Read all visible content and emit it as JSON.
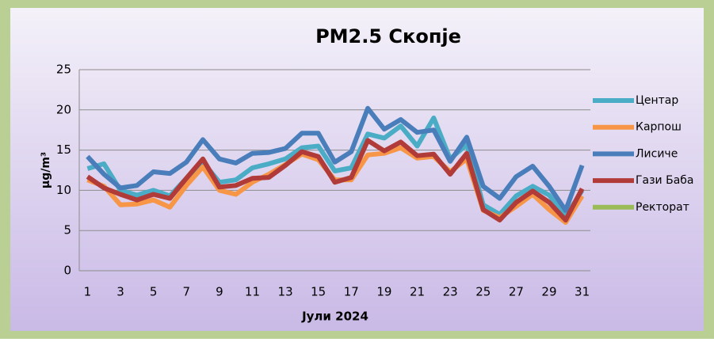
{
  "chart_data": {
    "type": "line",
    "title": "PM2.5 Скопје",
    "x_label": "Јули 2024",
    "y_label": "μg/m³",
    "categories": [
      1,
      null,
      3,
      null,
      5,
      null,
      7,
      null,
      9,
      null,
      11,
      null,
      13,
      null,
      15,
      null,
      17,
      null,
      19,
      null,
      21,
      null,
      23,
      null,
      25,
      null,
      27,
      null,
      29,
      null,
      31
    ],
    "ylim": [
      0,
      25
    ],
    "yticks": [
      0,
      5,
      10,
      15,
      20,
      25
    ],
    "grid": true,
    "legend": "right",
    "series": [
      {
        "name": "Центар",
        "color": "#4bacc6",
        "values": [
          12.7,
          13.3,
          10,
          9.4,
          10,
          9.3,
          11.5,
          13.5,
          11,
          11.3,
          12.8,
          13.3,
          13.9,
          15.3,
          15.5,
          12.4,
          12.8,
          17,
          16.5,
          18,
          15.5,
          19,
          13.9,
          15.7,
          8.2,
          7,
          9.3,
          10.5,
          9.4,
          6.7,
          10
        ]
      },
      {
        "name": "Карпош",
        "color": "#f79646",
        "values": [
          11.3,
          10.5,
          8.2,
          8.3,
          8.8,
          7.9,
          10.6,
          12.9,
          10,
          9.5,
          11,
          12,
          13.2,
          14.5,
          13.8,
          11.3,
          11.3,
          14.4,
          14.6,
          15.3,
          14,
          14.2,
          12.3,
          13.9,
          7.5,
          6.6,
          8,
          9.5,
          7.6,
          6,
          9.3
        ]
      },
      {
        "name": "Лисиче",
        "color": "#4a7ebb",
        "values": [
          14.2,
          12,
          10.3,
          10.6,
          12.3,
          12.1,
          13.5,
          16.3,
          13.9,
          13.4,
          14.6,
          14.7,
          15.2,
          17.1,
          17.1,
          13.5,
          14.8,
          20.2,
          17.6,
          18.8,
          17.2,
          17.5,
          13.6,
          16.6,
          10.5,
          9,
          11.7,
          13,
          10.5,
          7.5,
          13.1
        ]
      },
      {
        "name": "Гази Баба",
        "color": "#b03b38",
        "values": [
          11.7,
          10.3,
          9.5,
          8.8,
          9.5,
          9,
          11.5,
          13.9,
          10.4,
          10.6,
          11.5,
          11.6,
          13.1,
          14.8,
          14.2,
          11,
          11.6,
          16.2,
          14.9,
          16,
          14.3,
          14.5,
          12,
          14.6,
          7.6,
          6.3,
          8.5,
          9.9,
          8.5,
          6.3,
          10.2
        ]
      },
      {
        "name": "Ректорат",
        "color": "#9bbb59",
        "values": [
          null,
          null,
          null,
          null,
          null,
          null,
          null,
          null,
          null,
          null,
          null,
          null,
          null,
          null,
          null,
          null,
          null,
          null,
          null,
          null,
          null,
          null,
          null,
          null,
          null,
          null,
          null,
          null,
          null,
          null,
          null
        ]
      }
    ]
  }
}
